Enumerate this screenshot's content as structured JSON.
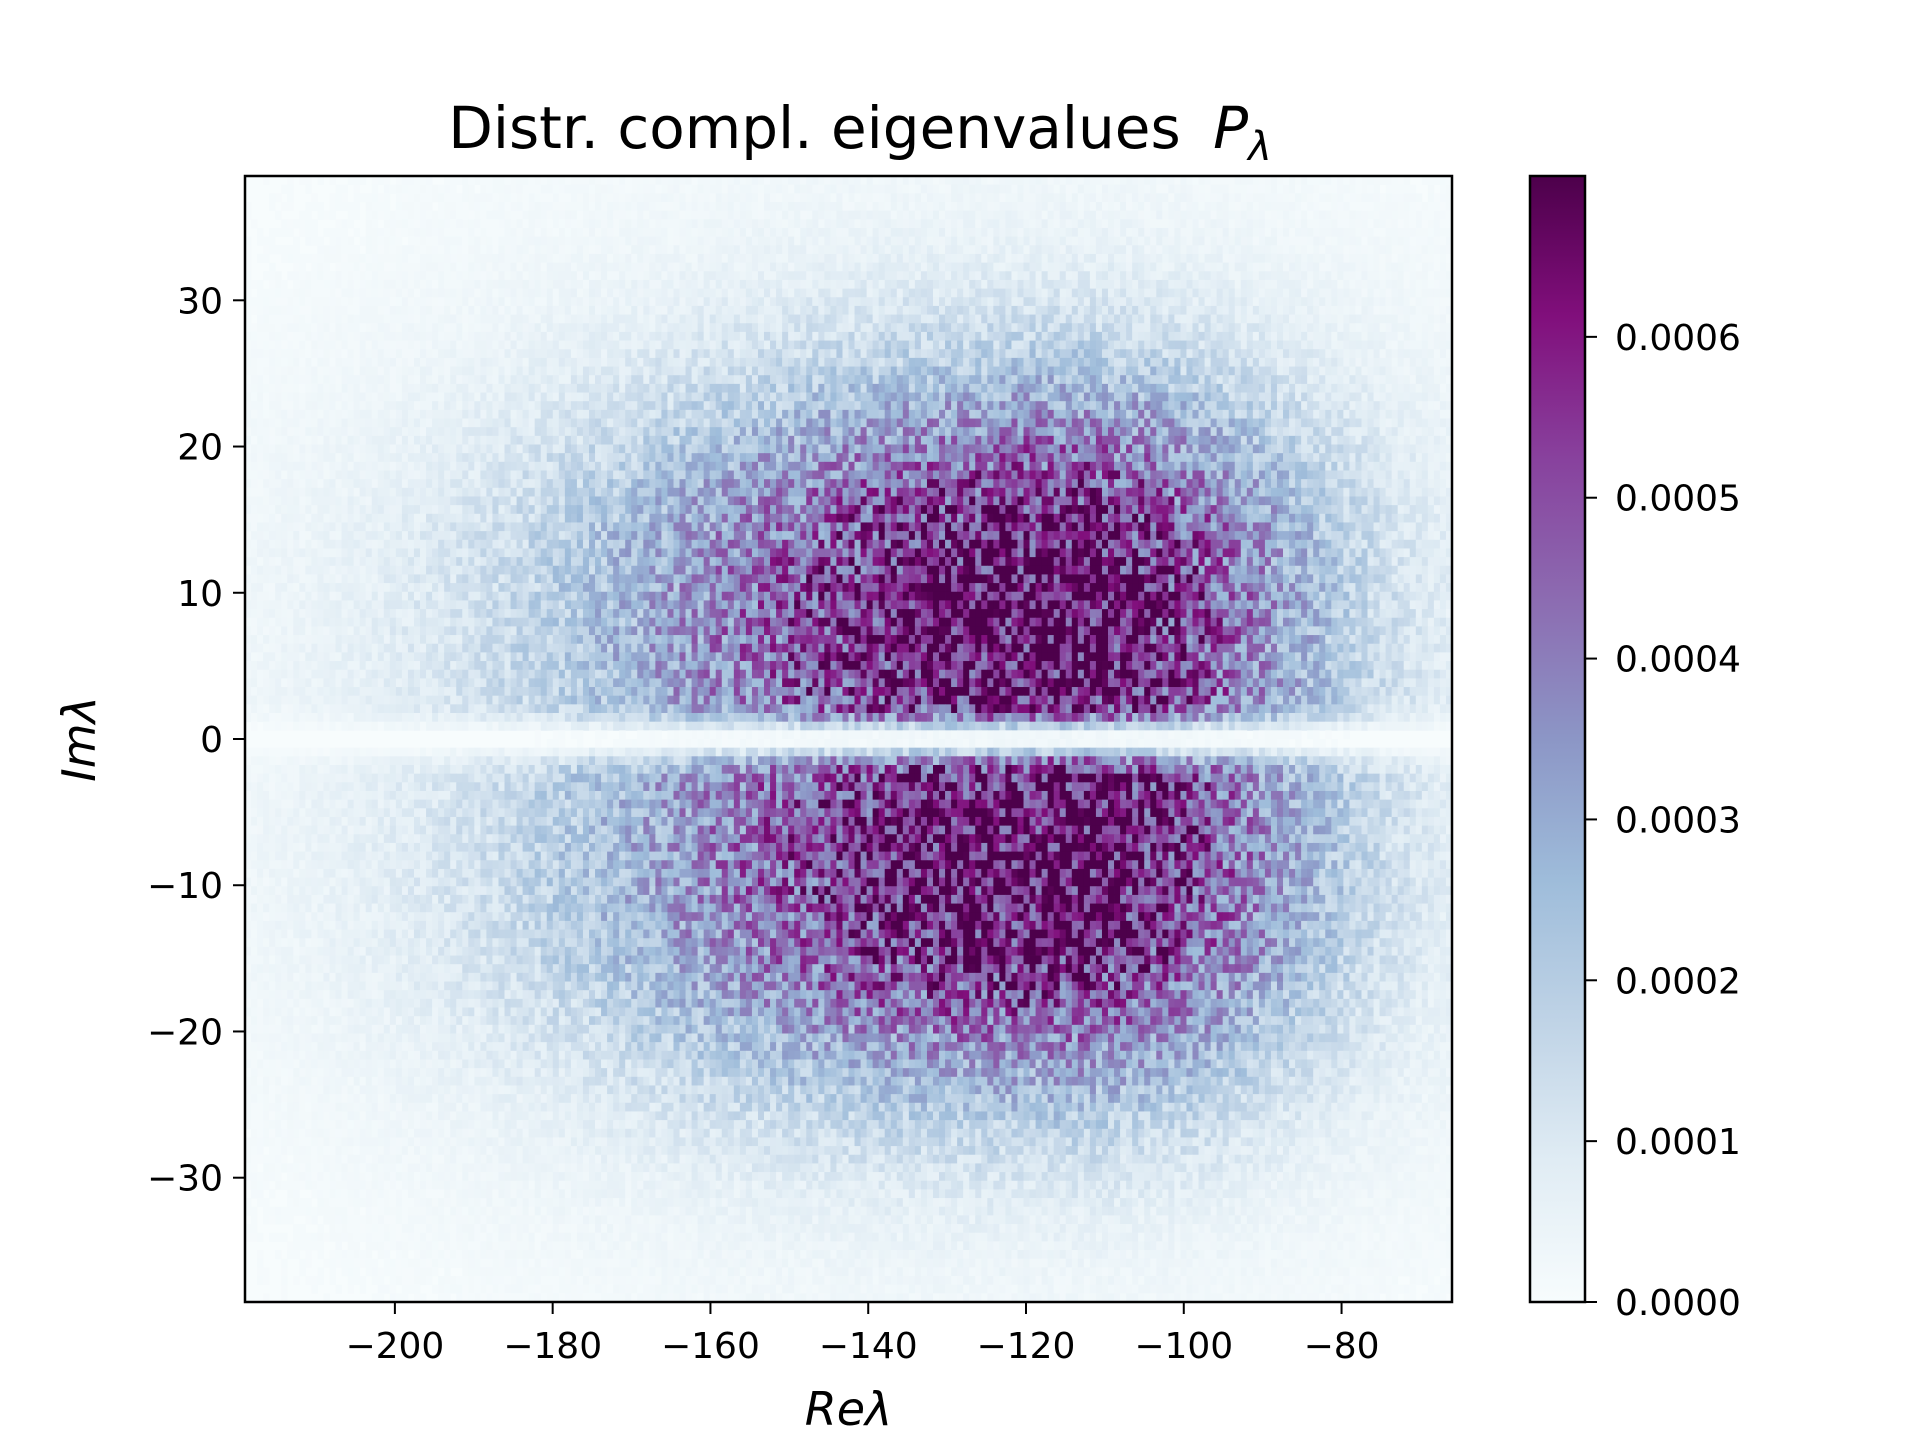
{
  "chart_data": {
    "type": "heatmap",
    "title": "Distr. compl. eigenvalues",
    "title_symbol": "P",
    "title_symbol_sub": "λ",
    "xlabel": "Reλ",
    "ylabel": "Imλ",
    "xlim": [
      -219,
      -66
    ],
    "ylim": [
      -38.5,
      38.5
    ],
    "xticks": [
      -200,
      -180,
      -160,
      -140,
      -120,
      -100,
      -80
    ],
    "xtick_labels": [
      "−200",
      "−180",
      "−160",
      "−140",
      "−120",
      "−100",
      "−80"
    ],
    "yticks": [
      30,
      20,
      10,
      0,
      -10,
      -20,
      -30
    ],
    "ytick_labels": [
      "30",
      "20",
      "10",
      "0",
      "−10",
      "−20",
      "−30"
    ],
    "colorbar": {
      "colormap": "BuPu",
      "range": [
        0,
        0.0007
      ],
      "ticks": [
        0,
        0.0001,
        0.0002,
        0.0003,
        0.0004,
        0.0005,
        0.0006
      ],
      "tick_labels": [
        "0.0000",
        "0.0001",
        "0.0002",
        "0.0003",
        "0.0004",
        "0.0005",
        "0.0006"
      ]
    },
    "colors": {
      "stops": [
        "#f7fcfd",
        "#e0ecf4",
        "#bfd3e6",
        "#9ebcda",
        "#8c96c6",
        "#8c6bb1",
        "#88419d",
        "#810f7c",
        "#4d004b"
      ]
    },
    "distribution": {
      "description_units": "data",
      "lobes": [
        {
          "center_re": -116,
          "center_im": 11,
          "peak_density": 0.00058
        },
        {
          "center_re": -116,
          "center_im": -11,
          "peak_density": 0.00058
        }
      ],
      "gap_near_im": 0,
      "re_extent": [
        -200,
        -80
      ],
      "im_extent": [
        -33,
        33
      ]
    }
  }
}
